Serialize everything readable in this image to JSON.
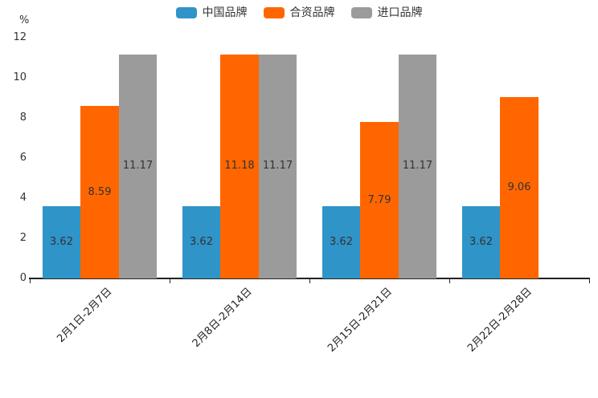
{
  "chart_data": {
    "type": "bar",
    "title": "",
    "ylabel": "%",
    "xlabel": "",
    "categories": [
      "2月1日-2月7日",
      "2月8日-2月14日",
      "2月15日-2月21日",
      "2月22日-2月28日"
    ],
    "series": [
      {
        "name": "中国品牌",
        "color": "#2F94C8",
        "values": [
          3.62,
          3.62,
          3.62,
          3.62
        ]
      },
      {
        "name": "合资品牌",
        "color": "#FF6600",
        "values": [
          8.59,
          11.18,
          7.79,
          9.06
        ]
      },
      {
        "name": "进口品牌",
        "color": "#9B9B9B",
        "values": [
          11.17,
          11.17,
          11.17,
          null
        ]
      }
    ],
    "ylim": [
      0,
      12
    ],
    "yticks": [
      0,
      2,
      4,
      6,
      8,
      10,
      12
    ],
    "grid": false,
    "legend_position": "top-center",
    "label_position": "inside-center",
    "axis_color": "#222222",
    "label_color": "#333333",
    "background_color": "#ffffff"
  }
}
